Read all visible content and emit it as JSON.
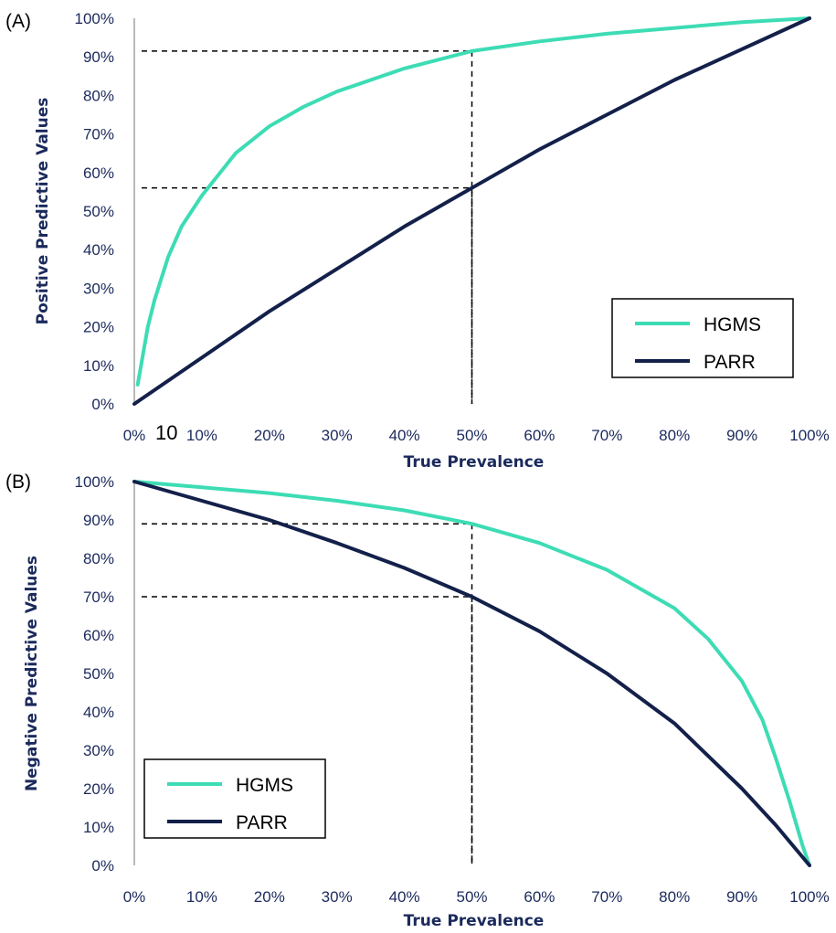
{
  "chart_data": [
    {
      "panel_label": "(A)",
      "type": "line",
      "xlabel": "True Prevalence",
      "ylabel": "Positive  Predictive Values",
      "xlim": [
        0,
        100
      ],
      "ylim": [
        0,
        100
      ],
      "x_ticks": [
        "0%",
        "10%",
        "20%",
        "30%",
        "40%",
        "50%",
        "60%",
        "70%",
        "80%",
        "90%",
        "100%"
      ],
      "y_ticks": [
        "0%",
        "10%",
        "20%",
        "30%",
        "40%",
        "50%",
        "60%",
        "70%",
        "80%",
        "90%",
        "100%"
      ],
      "stray_label": "10",
      "series": [
        {
          "name": "HGMS",
          "color": "#3ddcb4",
          "x": [
            0.5,
            1,
            2,
            3,
            5,
            7,
            10,
            15,
            20,
            25,
            30,
            40,
            50,
            60,
            70,
            80,
            90,
            100
          ],
          "y": [
            5,
            10,
            20,
            27,
            38,
            46,
            54,
            65,
            72,
            77,
            81,
            87,
            91.5,
            94,
            96,
            97.5,
            99,
            100
          ]
        },
        {
          "name": "PARR",
          "color": "#13204a",
          "x": [
            0,
            10,
            20,
            30,
            40,
            50,
            60,
            70,
            80,
            90,
            100
          ],
          "y": [
            0,
            12,
            24,
            35,
            46,
            56,
            66,
            75,
            84,
            92,
            100
          ]
        }
      ],
      "reference_lines": [
        {
          "x": 50,
          "y": 91.5
        },
        {
          "x": 50,
          "y": 56
        }
      ],
      "grid": false,
      "legend_position": "bottom-right"
    },
    {
      "panel_label": "(B)",
      "type": "line",
      "xlabel": "True Prevalence",
      "ylabel": "Negative Predictive Values",
      "xlim": [
        0,
        100
      ],
      "ylim": [
        0,
        100
      ],
      "x_ticks": [
        "0%",
        "10%",
        "20%",
        "30%",
        "40%",
        "50%",
        "60%",
        "70%",
        "80%",
        "90%",
        "100%"
      ],
      "y_ticks": [
        "0%",
        "10%",
        "20%",
        "30%",
        "40%",
        "50%",
        "60%",
        "70%",
        "80%",
        "90%",
        "100%"
      ],
      "series": [
        {
          "name": "HGMS",
          "color": "#3ddcb4",
          "x": [
            0,
            10,
            20,
            30,
            40,
            50,
            60,
            70,
            80,
            85,
            90,
            93,
            95,
            97,
            99,
            100
          ],
          "y": [
            100,
            98.5,
            97,
            95,
            92.5,
            89,
            84,
            77,
            67,
            59,
            48,
            38,
            28,
            17,
            5,
            0
          ]
        },
        {
          "name": "PARR",
          "color": "#13204a",
          "x": [
            0,
            10,
            20,
            30,
            40,
            50,
            60,
            70,
            80,
            90,
            95,
            100
          ],
          "y": [
            100,
            95,
            90,
            84,
            77.5,
            70,
            61,
            50,
            37,
            20,
            10.5,
            0
          ]
        }
      ],
      "reference_lines": [
        {
          "x": 50,
          "y": 89
        },
        {
          "x": 50,
          "y": 70
        }
      ],
      "grid": false,
      "legend_position": "bottom-left"
    }
  ]
}
